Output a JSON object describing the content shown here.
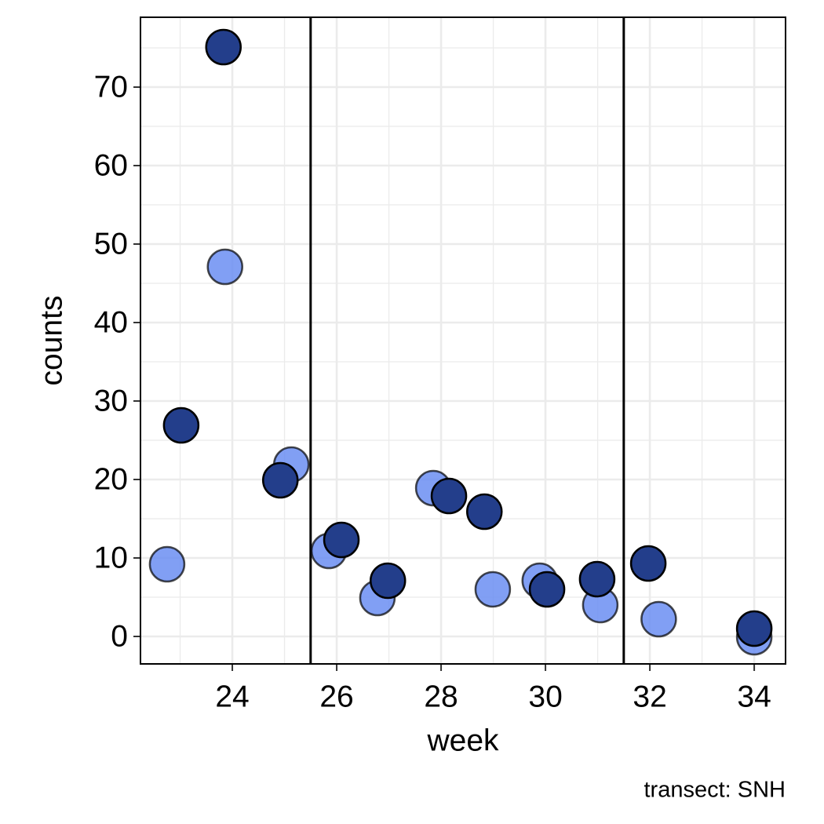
{
  "chart_data": {
    "type": "scatter",
    "x_label": "week",
    "y_label": "counts",
    "caption": "transect: SNH",
    "xlim": [
      22.24,
      34.6
    ],
    "ylim": [
      -3.5,
      78.9
    ],
    "xticks": [
      24,
      26,
      28,
      30,
      32,
      34
    ],
    "yticks": [
      0,
      10,
      20,
      30,
      40,
      50,
      60,
      70
    ],
    "grid": true,
    "vlines": [
      25.5,
      31.5
    ],
    "series": [
      {
        "color": "#6b8ef2",
        "x": [
          22.75,
          23.86,
          25.13,
          25.85,
          26.78,
          27.85,
          28.99,
          29.89,
          31.05,
          32.17,
          34.0
        ],
        "values": [
          9.2,
          47.1,
          21.9,
          10.9,
          4.9,
          18.9,
          6.0,
          7.1,
          4.0,
          2.2,
          -0.1
        ]
      },
      {
        "color": "#233e8b",
        "x": [
          23.02,
          23.83,
          24.92,
          26.09,
          26.98,
          28.15,
          28.83,
          30.03,
          30.99,
          31.97,
          34.0
        ],
        "values": [
          26.9,
          75.1,
          19.9,
          12.3,
          7.1,
          17.9,
          15.9,
          6.0,
          7.3,
          9.3,
          1.0
        ]
      }
    ]
  }
}
